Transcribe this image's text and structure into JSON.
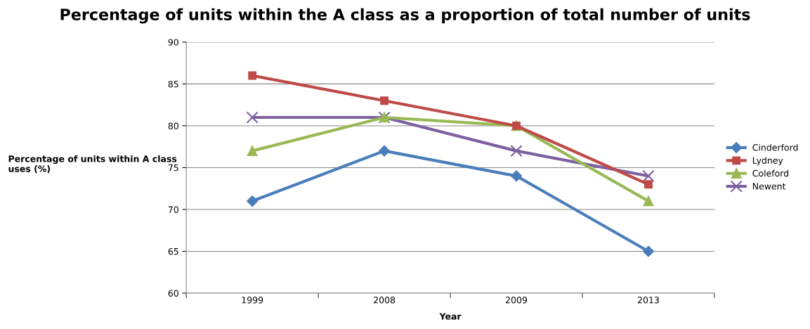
{
  "chart_data": {
    "type": "line",
    "title": "Percentage of units within the A class as a proportion of total number of units",
    "xlabel": "Year",
    "ylabel": "Percentage of units within A class\nuses (%)",
    "categories": [
      "1999",
      "2008",
      "2009",
      "2013"
    ],
    "series": [
      {
        "name": "Cinderford",
        "color": "#4a7ebb",
        "marker": "diamond",
        "values": [
          71,
          77,
          74,
          65
        ]
      },
      {
        "name": "Lydney",
        "color": "#be4b48",
        "marker": "square",
        "values": [
          86,
          83,
          80,
          73
        ]
      },
      {
        "name": "Coleford",
        "color": "#98b954",
        "marker": "triangle",
        "values": [
          77,
          81,
          80,
          71
        ]
      },
      {
        "name": "Newent",
        "color": "#7d60a0",
        "marker": "cross",
        "values": [
          81,
          81,
          77,
          74
        ]
      }
    ],
    "ylim": [
      60,
      90
    ],
    "yticks": [
      60,
      65,
      70,
      75,
      80,
      85,
      90
    ],
    "grid": "y",
    "legend": "right",
    "line_style": "solid"
  }
}
